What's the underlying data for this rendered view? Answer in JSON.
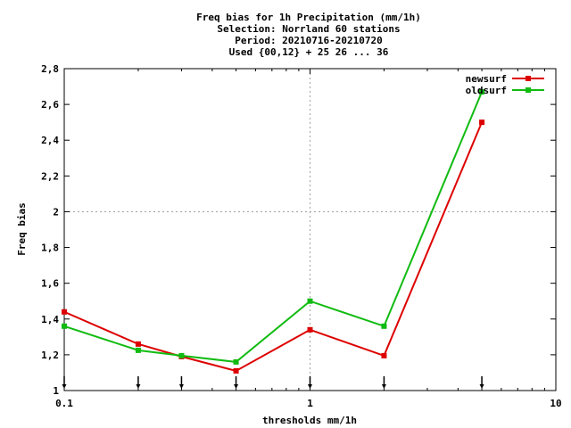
{
  "chart_data": {
    "type": "line",
    "title_lines": [
      "Freq bias  for 1h Precipitation (mm/1h)",
      "Selection: Norrland     60 stations",
      "Period: 20210716-20210720",
      "Used {00,12} + 25 26 ... 36"
    ],
    "xlabel": "thresholds mm/1h",
    "ylabel": "Freq bias",
    "x_scale": "log",
    "xlim": [
      0.1,
      10
    ],
    "ylim": [
      1,
      2.8
    ],
    "x_ticks": [
      0.1,
      1,
      10
    ],
    "x_tick_labels": [
      "0.1",
      "1",
      "10"
    ],
    "y_ticks": [
      1,
      1.2,
      1.4,
      1.6,
      1.8,
      2,
      2.2,
      2.4,
      2.6,
      2.8
    ],
    "y_tick_labels": [
      "1",
      "1,2",
      "1,4",
      "1,6",
      "1,8",
      "2",
      "2,2",
      "2,4",
      "2,6",
      "2,8"
    ],
    "grid": "x=1 and y=2 dashed",
    "legend_position": "top-right",
    "threshold_markers": [
      0.1,
      0.2,
      0.3,
      0.5,
      1,
      2,
      5
    ],
    "x": [
      0.1,
      0.2,
      0.3,
      0.5,
      1,
      2,
      5
    ],
    "series": [
      {
        "name": "newsurf",
        "color": "#dd0000",
        "values": [
          1.44,
          1.26,
          1.19,
          1.11,
          1.34,
          1.195,
          2.5
        ]
      },
      {
        "name": "oldsurf",
        "color": "#11bb11",
        "values": [
          1.36,
          1.225,
          1.195,
          1.16,
          1.5,
          1.36,
          2.67
        ]
      }
    ]
  }
}
